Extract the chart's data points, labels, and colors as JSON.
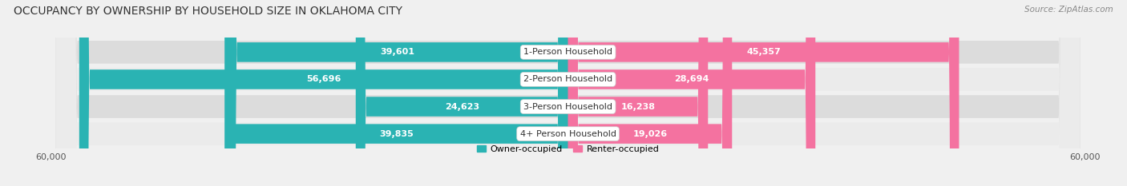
{
  "title": "OCCUPANCY BY OWNERSHIP BY HOUSEHOLD SIZE IN OKLAHOMA CITY",
  "source": "Source: ZipAtlas.com",
  "categories": [
    "1-Person Household",
    "2-Person Household",
    "3-Person Household",
    "4+ Person Household"
  ],
  "owner_values": [
    39601,
    56696,
    24623,
    39835
  ],
  "renter_values": [
    45357,
    28694,
    16238,
    19026
  ],
  "max_val": 60000,
  "owner_color_dark": "#2ab3b3",
  "owner_color_light": "#7dd4d4",
  "renter_color_dark": "#f472a0",
  "renter_color_light": "#f9b8ce",
  "background_color": "#f0f0f0",
  "row_bg_color": "#e0e0e0",
  "row_alt_color": "#ffffff",
  "title_fontsize": 10,
  "source_fontsize": 7.5,
  "label_fontsize": 8,
  "tick_fontsize": 8,
  "legend_fontsize": 8,
  "value_color_white": "#ffffff",
  "value_color_dark": "#555555"
}
